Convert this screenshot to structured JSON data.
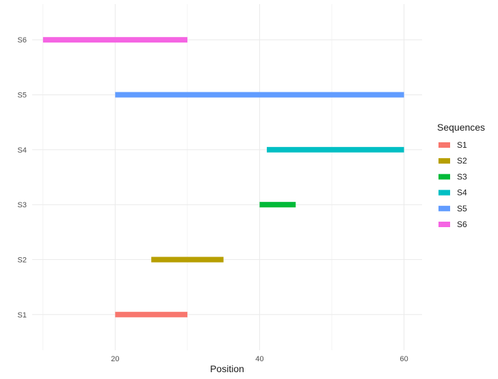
{
  "chart_data": {
    "type": "bar",
    "orientation": "horizontal-range",
    "title": "",
    "xlabel": "Position",
    "ylabel": "",
    "xlim": [
      8.5,
      62.5
    ],
    "x_ticks_major": [
      20,
      40,
      60
    ],
    "x_ticks_minor": [
      10,
      30,
      50
    ],
    "categories": [
      "S1",
      "S2",
      "S3",
      "S4",
      "S5",
      "S6"
    ],
    "series": [
      {
        "name": "S1",
        "start": 20,
        "end": 30,
        "color": "#F8766D"
      },
      {
        "name": "S2",
        "start": 25,
        "end": 35,
        "color": "#B79F00"
      },
      {
        "name": "S3",
        "start": 40,
        "end": 45,
        "color": "#00BA38"
      },
      {
        "name": "S4",
        "start": 41,
        "end": 60,
        "color": "#00BFC4"
      },
      {
        "name": "S5",
        "start": 20,
        "end": 60,
        "color": "#619CFF"
      },
      {
        "name": "S6",
        "start": 10,
        "end": 30,
        "color": "#F564E3"
      }
    ],
    "grid": true,
    "legend": {
      "title": "Sequences",
      "position": "right"
    }
  }
}
